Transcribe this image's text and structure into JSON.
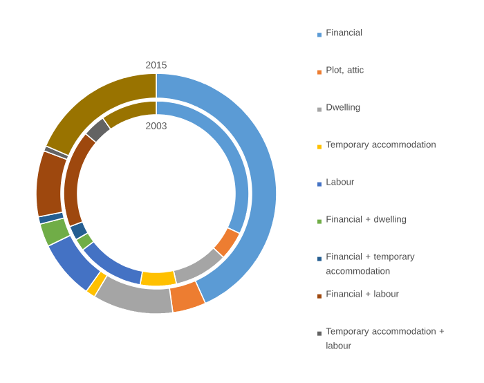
{
  "chart_data": {
    "type": "donut",
    "categories": [
      "Financial",
      "Plot, attic",
      "Dwelling",
      "Temporary accommodation",
      "Labour",
      "Financial + dwelling",
      "Financial + temporary accommodation",
      "Financial + labour",
      "Temporary accommodation + labour",
      null
    ],
    "colors": [
      "#5b9bd5",
      "#ed7d31",
      "#a5a5a5",
      "#ffc000",
      "#4472c4",
      "#70ad47",
      "#255e91",
      "#9e480e",
      "#636363",
      "#997300"
    ],
    "series": [
      {
        "name": "2015",
        "values": [
          43.3,
          4.5,
          10.8,
          1.3,
          7.9,
          3.1,
          1.0,
          8.9,
          0.7,
          18.5
        ]
      },
      {
        "name": "2003",
        "values": [
          32.1,
          5.0,
          9.4,
          6.3,
          11.8,
          2.1,
          2.5,
          17.0,
          4.0,
          9.8
        ]
      }
    ],
    "legend": "right"
  }
}
